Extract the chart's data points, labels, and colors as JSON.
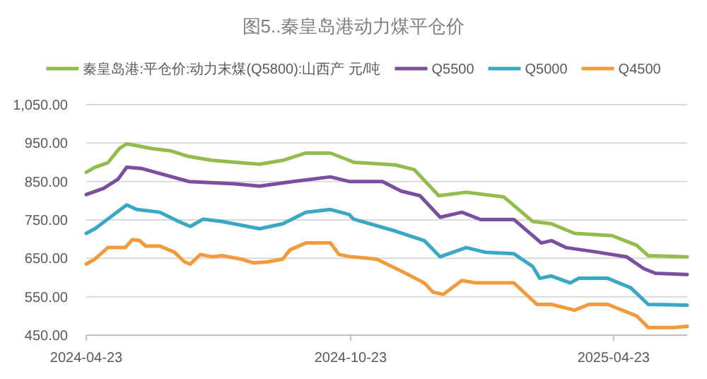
{
  "chart_data": {
    "type": "line",
    "title": "图5..秦皇岛港动力煤平仓价",
    "legend": "top",
    "grid": "y",
    "marker": "none",
    "line_style": "solid",
    "xlim": [
      "2024-04-23",
      "2025-06-13"
    ],
    "xticks": [
      "2024-04-23",
      "2024-10-23",
      "2025-04-23"
    ],
    "ylim": [
      450,
      1050
    ],
    "yticks": [
      {
        "value": 450,
        "label": "450.00"
      },
      {
        "value": 550,
        "label": "550.00"
      },
      {
        "value": 650,
        "label": "650.00"
      },
      {
        "value": 750,
        "label": "750.00"
      },
      {
        "value": 850,
        "label": "850.00"
      },
      {
        "value": 950,
        "label": "950.00"
      },
      {
        "value": 1050,
        "label": "1,050.00"
      }
    ],
    "series": [
      {
        "name": "秦皇岛港:平仓价:动力末煤(Q5800):山西产 元/吨",
        "color": "#92bc4c",
        "x": [
          "2024-04-23",
          "2024-04-29",
          "2024-05-08",
          "2024-05-16",
          "2024-05-21",
          "2024-05-30",
          "2024-06-07",
          "2024-06-20",
          "2024-07-03",
          "2024-07-19",
          "2024-08-04",
          "2024-08-21",
          "2024-09-06",
          "2024-09-22",
          "2024-10-09",
          "2024-10-22",
          "2024-10-25",
          "2024-11-23",
          "2024-12-06",
          "2024-12-23",
          "2025-01-11",
          "2025-02-06",
          "2025-02-26",
          "2025-03-11",
          "2025-03-27",
          "2025-04-22",
          "2025-05-09",
          "2025-05-17",
          "2025-06-13"
        ],
        "values": [
          874,
          887,
          899,
          936,
          948,
          942,
          936,
          930,
          915,
          905,
          900,
          895,
          905,
          924,
          924,
          905,
          900,
          893,
          881,
          813,
          822,
          810,
          746,
          740,
          715,
          709,
          684,
          657,
          654
        ]
      },
      {
        "name": "Q5500",
        "color": "#7b4fa0",
        "x": [
          "2024-04-23",
          "2024-05-05",
          "2024-05-15",
          "2024-05-21",
          "2024-05-31",
          "2024-07-03",
          "2024-08-04",
          "2024-08-21",
          "2024-09-13",
          "2024-10-09",
          "2024-10-22",
          "2024-10-25",
          "2024-11-14",
          "2024-11-27",
          "2024-12-10",
          "2024-12-24",
          "2025-01-08",
          "2025-01-21",
          "2025-02-13",
          "2025-03-04",
          "2025-03-11",
          "2025-03-21",
          "2025-04-12",
          "2025-05-02",
          "2025-05-14",
          "2025-05-22",
          "2025-06-13"
        ],
        "values": [
          816,
          832,
          856,
          887,
          884,
          850,
          844,
          838,
          850,
          862,
          850,
          850,
          850,
          825,
          813,
          757,
          770,
          751,
          751,
          690,
          696,
          678,
          666,
          654,
          623,
          611,
          608
        ]
      },
      {
        "name": "Q5000",
        "color": "#3aa7c4",
        "x": [
          "2024-04-23",
          "2024-04-29",
          "2024-05-12",
          "2024-05-21",
          "2024-05-28",
          "2024-06-13",
          "2024-06-26",
          "2024-07-04",
          "2024-07-13",
          "2024-07-26",
          "2024-08-21",
          "2024-09-06",
          "2024-09-22",
          "2024-10-09",
          "2024-10-22",
          "2024-10-25",
          "2024-11-23",
          "2024-12-13",
          "2024-12-24",
          "2025-01-11",
          "2025-01-24",
          "2025-02-13",
          "2025-02-26",
          "2025-03-03",
          "2025-03-11",
          "2025-03-24",
          "2025-03-30",
          "2025-04-19",
          "2025-05-05",
          "2025-05-17",
          "2025-06-13"
        ],
        "values": [
          715,
          727,
          764,
          789,
          777,
          770,
          746,
          733,
          752,
          746,
          727,
          740,
          770,
          777,
          764,
          752,
          721,
          696,
          654,
          678,
          666,
          662,
          629,
          598,
          604,
          586,
          598,
          598,
          573,
          530,
          528
        ]
      },
      {
        "name": "Q4500",
        "color": "#f39a3c",
        "x": [
          "2024-04-23",
          "2024-04-29",
          "2024-05-08",
          "2024-05-20",
          "2024-05-25",
          "2024-05-30",
          "2024-06-03",
          "2024-06-13",
          "2024-06-23",
          "2024-06-30",
          "2024-07-04",
          "2024-07-11",
          "2024-07-19",
          "2024-07-26",
          "2024-08-08",
          "2024-08-17",
          "2024-08-27",
          "2024-09-06",
          "2024-09-11",
          "2024-09-22",
          "2024-10-09",
          "2024-10-15",
          "2024-10-23",
          "2024-10-25",
          "2024-11-10",
          "2024-11-27",
          "2024-12-13",
          "2024-12-19",
          "2024-12-26",
          "2025-01-08",
          "2025-01-18",
          "2025-02-13",
          "2025-03-01",
          "2025-03-11",
          "2025-03-27",
          "2025-04-06",
          "2025-04-19",
          "2025-05-09",
          "2025-05-17",
          "2025-06-04",
          "2025-06-13"
        ],
        "values": [
          635,
          648,
          678,
          678,
          699,
          696,
          682,
          682,
          666,
          641,
          635,
          660,
          654,
          657,
          648,
          638,
          641,
          648,
          672,
          690,
          690,
          660,
          654,
          654,
          648,
          617,
          586,
          562,
          556,
          592,
          586,
          586,
          530,
          530,
          515,
          530,
          530,
          500,
          470,
          470,
          473
        ]
      }
    ]
  }
}
